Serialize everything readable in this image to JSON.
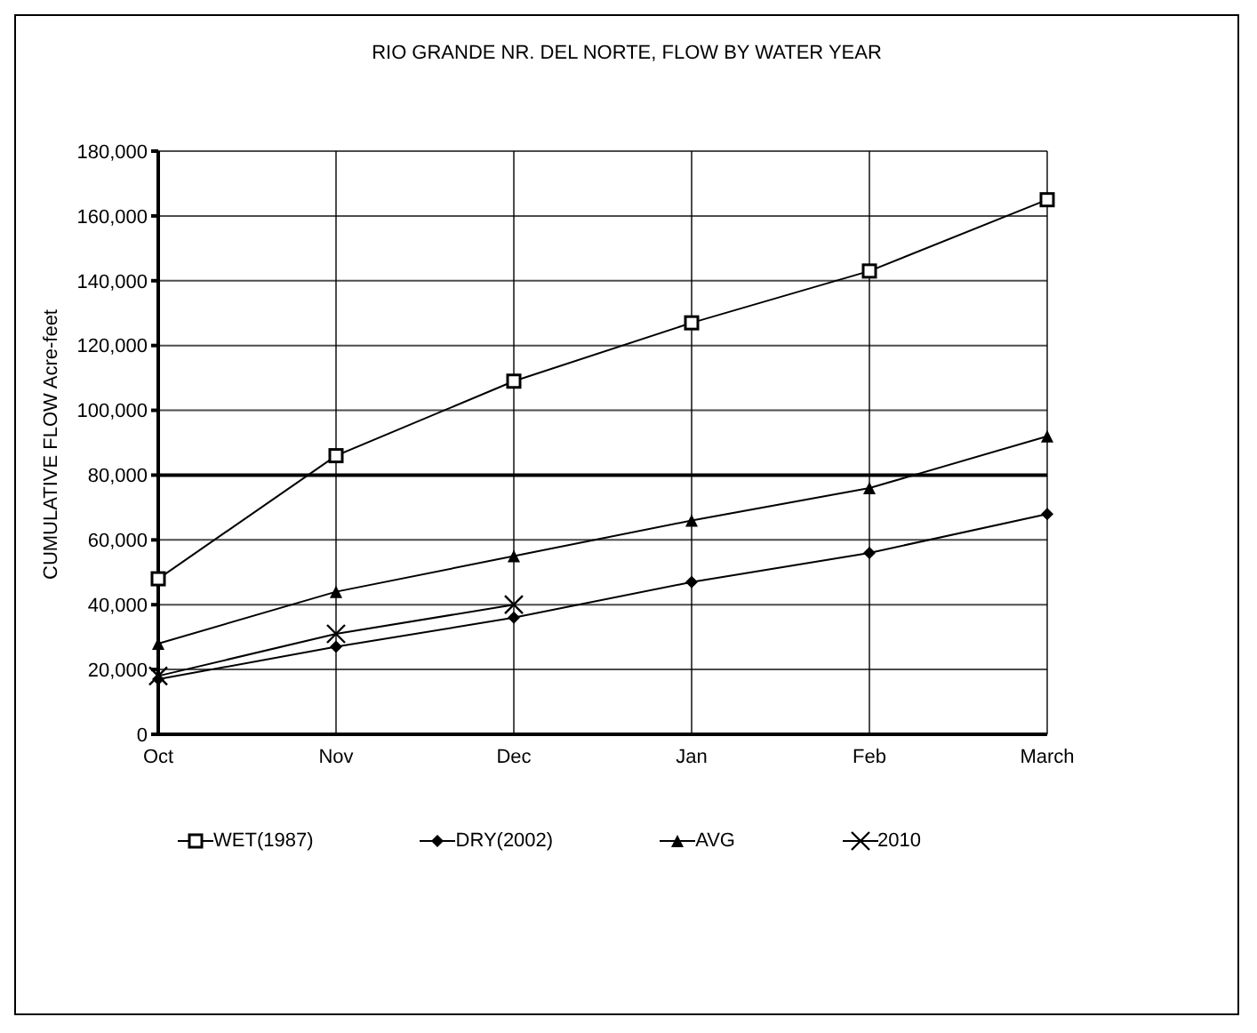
{
  "chart_data": {
    "type": "line",
    "title": "RIO GRANDE NR. DEL NORTE, FLOW BY WATER YEAR",
    "ylabel": "CUMULATIVE FLOW Acre-feet",
    "categories": [
      "Oct",
      "Nov",
      "Dec",
      "Jan",
      "Feb",
      "March"
    ],
    "series": [
      {
        "name": "WET(1987)",
        "color": "#000000",
        "marker": "square",
        "values": [
          48000,
          86000,
          109000,
          127000,
          143000,
          165000
        ]
      },
      {
        "name": "DRY(2002)",
        "color": "#000000",
        "marker": "diamond",
        "values": [
          17000,
          27000,
          36000,
          47000,
          56000,
          68000
        ]
      },
      {
        "name": "AVG",
        "color": "#000000",
        "marker": "triangle",
        "values": [
          28000,
          44000,
          55000,
          66000,
          76000,
          92000
        ]
      },
      {
        "name": "2010",
        "color": "#000000",
        "marker": "cross",
        "values": [
          18000,
          31000,
          40000,
          null,
          null,
          null
        ]
      }
    ],
    "ylim": [
      0,
      180000
    ],
    "yticks": [
      0,
      {
        "value": 20000,
        "label": "20,000"
      },
      {
        "value": 40000,
        "label": "40,000"
      },
      {
        "value": 60000,
        "label": "60,000"
      },
      {
        "value": 80000,
        "label": "80,000"
      },
      {
        "value": 100000,
        "label": "100,000"
      },
      {
        "value": 120000,
        "label": "120,000"
      },
      {
        "value": 140000,
        "label": "140,000"
      },
      {
        "value": 160000,
        "label": "160,000"
      },
      {
        "value": 180000,
        "label": "180,000"
      }
    ],
    "ref_lines": [
      {
        "axis": "y",
        "value": 80000,
        "label": null,
        "color": "#000000"
      }
    ],
    "grid": true,
    "legend": "bottom"
  }
}
